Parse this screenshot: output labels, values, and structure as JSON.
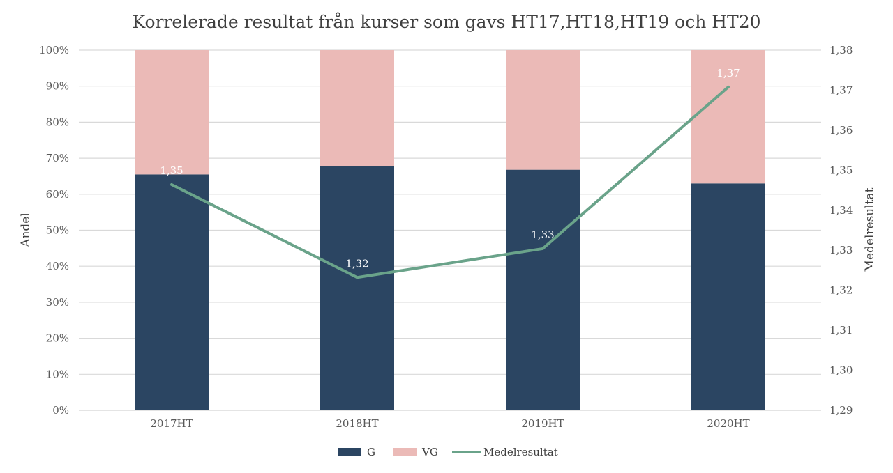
{
  "chart_data": {
    "type": "bar",
    "stacked": true,
    "normalized": true,
    "title": "Korrelerade resultat från kurser som gavs HT17,HT18,HT19 och HT20",
    "categories": [
      "2017HT",
      "2018HT",
      "2019HT",
      "2020HT"
    ],
    "ylabel": "Andel",
    "ylim": [
      0,
      1
    ],
    "y_ticks": [
      "0%",
      "10%",
      "20%",
      "30%",
      "40%",
      "50%",
      "60%",
      "70%",
      "80%",
      "90%",
      "100%"
    ],
    "y2label": "Medelresultat",
    "y2lim": [
      1.29,
      1.38
    ],
    "y2_ticks": [
      "1,29",
      "1,30",
      "1,31",
      "1,32",
      "1,33",
      "1,34",
      "1,35",
      "1,36",
      "1,37",
      "1,38"
    ],
    "series": [
      {
        "name": "G",
        "type": "bar",
        "axis": "left",
        "color": "#2b4562",
        "values": [
          0.655,
          0.678,
          0.668,
          0.63
        ]
      },
      {
        "name": "VG",
        "type": "bar",
        "axis": "left",
        "color": "#ebbab7",
        "values": [
          0.345,
          0.322,
          0.332,
          0.37
        ]
      },
      {
        "name": "Medelresultat",
        "type": "line",
        "axis": "right",
        "color": "#6aa38a",
        "values": [
          1.3464,
          1.3232,
          1.3304,
          1.3708
        ],
        "labels": [
          "1,35",
          "1,32",
          "1,33",
          "1,37"
        ]
      }
    ],
    "grid": true,
    "legend": "bottom"
  }
}
